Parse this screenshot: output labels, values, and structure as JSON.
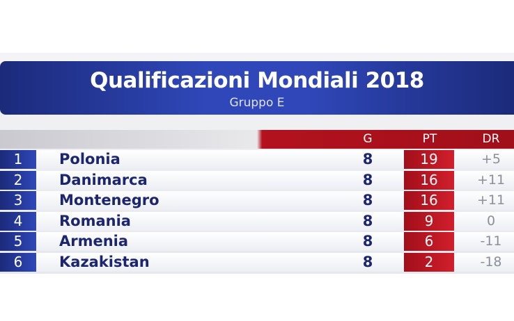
{
  "header": {
    "title": "Qualificazioni Mondiali 2018",
    "subtitle": "Gruppo E"
  },
  "table": {
    "columns": [
      "G",
      "PT",
      "DR"
    ],
    "rows": [
      [
        1,
        "Polonia",
        8,
        19,
        "+5"
      ],
      [
        2,
        "Danimarca",
        8,
        16,
        "+11"
      ],
      [
        3,
        "Montenegro",
        8,
        16,
        "+11"
      ],
      [
        4,
        "Romania",
        8,
        9,
        0
      ],
      [
        5,
        "Armenia",
        8,
        6,
        -11
      ],
      [
        6,
        "Kazakistan",
        8,
        2,
        -18
      ]
    ]
  }
}
